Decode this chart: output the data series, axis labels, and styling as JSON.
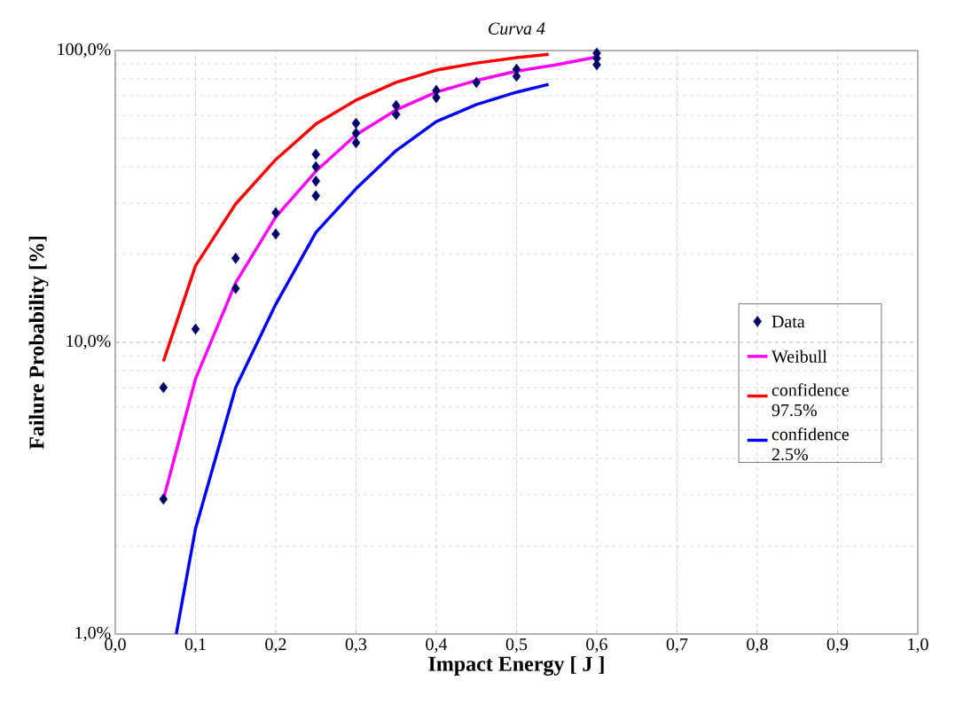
{
  "chart_data": {
    "type": "line",
    "title": "*Curva 4*",
    "xlabel": "Impact Energy [ J ]",
    "ylabel": "Failure Probability [%]",
    "xlim": [
      0,
      1
    ],
    "ylim": [
      1,
      100
    ],
    "log": "y",
    "grid": true,
    "legend": "right",
    "xticks": [
      {
        "value": 0,
        "label": "0,0"
      },
      {
        "value": 0.1,
        "label": "0,1"
      },
      {
        "value": 0.2,
        "label": "0,2"
      },
      {
        "value": 0.3,
        "label": "0,3"
      },
      {
        "value": 0.4,
        "label": "0,4"
      },
      {
        "value": 0.5,
        "label": "0,5"
      },
      {
        "value": 0.6,
        "label": "0,6"
      },
      {
        "value": 0.7,
        "label": "0,7"
      },
      {
        "value": 0.8,
        "label": "0,8"
      },
      {
        "value": 0.9,
        "label": "0,9"
      },
      {
        "value": 1,
        "label": "1,0"
      }
    ],
    "yticks": [
      {
        "value": 1,
        "label": "1,0%"
      },
      {
        "value": 10,
        "label": "10,0%"
      },
      {
        "value": 100,
        "label": "100,0%"
      }
    ],
    "series": [
      {
        "name": "Data",
        "type": "scatter",
        "marker": "diamond",
        "color": "#000066",
        "x": [
          0.06,
          0.06,
          0.1,
          0.15,
          0.15,
          0.2,
          0.2,
          0.25,
          0.25,
          0.25,
          0.25,
          0.3,
          0.3,
          0.3,
          0.35,
          0.35,
          0.4,
          0.4,
          0.45,
          0.5,
          0.5,
          0.6,
          0.6,
          0.6
        ],
        "values": [
          7.0,
          2.9,
          11.1,
          19.4,
          15.3,
          27.8,
          23.5,
          44.1,
          40.0,
          35.7,
          31.8,
          56.3,
          52.1,
          48.3,
          64.8,
          60.4,
          73.0,
          69.0,
          77.8,
          86.3,
          81.6,
          98,
          94,
          89.4
        ]
      },
      {
        "name": "Weibull",
        "type": "line",
        "color": "#ff00ff",
        "x": [
          0.06,
          0.1,
          0.15,
          0.2,
          0.25,
          0.3,
          0.35,
          0.4,
          0.45,
          0.5,
          0.55,
          0.6
        ],
        "values": [
          2.9,
          7.5,
          16.0,
          26.9,
          38.6,
          51.4,
          62.6,
          72,
          79,
          85,
          89.4,
          95
        ]
      },
      {
        "name": "confidence 97.5%",
        "type": "line",
        "color": "#ff0000",
        "x": [
          0.06,
          0.1,
          0.15,
          0.2,
          0.25,
          0.3,
          0.35,
          0.4,
          0.45,
          0.5,
          0.54
        ],
        "values": [
          8.6,
          18.3,
          29.8,
          42.3,
          56,
          67.6,
          77.8,
          85.7,
          90.6,
          94.6,
          97
        ]
      },
      {
        "name": "confidence 2.5%",
        "type": "line",
        "color": "#0000ff",
        "x": [
          0.076,
          0.1,
          0.15,
          0.2,
          0.25,
          0.3,
          0.35,
          0.4,
          0.45,
          0.5,
          0.54
        ],
        "values": [
          1.0,
          2.3,
          7.0,
          13.5,
          23.8,
          33.6,
          45.4,
          57.1,
          65.3,
          72,
          76.6
        ]
      }
    ]
  }
}
